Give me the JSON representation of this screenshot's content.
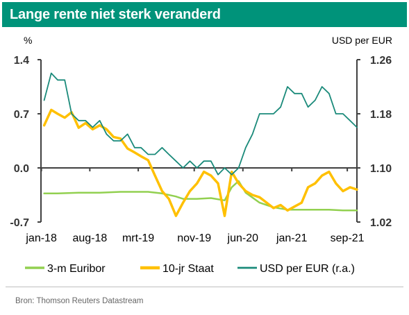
{
  "title": "Lange rente niet sterk veranderd",
  "source": "Bron: Thomson Reuters Datastream",
  "colors": {
    "title_bg": "#00937a",
    "euribor": "#92d050",
    "staat": "#ffc000",
    "usd": "#1a8a7a",
    "axis": "#404040",
    "gridline": "#d9d9d9"
  },
  "chart_data": {
    "type": "line",
    "title": "Lange rente niet sterk veranderd",
    "left_axis": {
      "label": "%",
      "ticks": [
        "1.4",
        "0.7",
        "0.0",
        "-0.7"
      ],
      "ylim": [
        -0.7,
        1.4
      ]
    },
    "right_axis": {
      "label": "USD per EUR",
      "ticks": [
        "1.26",
        "1.18",
        "1.10",
        "1.02"
      ],
      "ylim": [
        1.02,
        1.26
      ]
    },
    "x_ticks": [
      "jan-18",
      "aug-18",
      "mrt-19",
      "nov-19",
      "jun-20",
      "jan-21",
      "sep-21"
    ],
    "legend_position": "bottom",
    "grid": false,
    "series": [
      {
        "name": "3-m Euribor",
        "axis": "left",
        "x": [
          "2018-01",
          "2018-03",
          "2018-06",
          "2018-09",
          "2018-12",
          "2019-02",
          "2019-03",
          "2019-04",
          "2019-06",
          "2019-08",
          "2019-09",
          "2019-11",
          "2020-01",
          "2020-03",
          "2020-04",
          "2020-05",
          "2020-06",
          "2020-08",
          "2020-10",
          "2020-12",
          "2021-02",
          "2021-04",
          "2021-06",
          "2021-08",
          "2021-09",
          "2021-10"
        ],
        "values": [
          -0.33,
          -0.33,
          -0.32,
          -0.32,
          -0.31,
          -0.31,
          -0.31,
          -0.31,
          -0.33,
          -0.37,
          -0.4,
          -0.4,
          -0.39,
          -0.42,
          -0.25,
          -0.17,
          -0.32,
          -0.45,
          -0.51,
          -0.54,
          -0.54,
          -0.54,
          -0.54,
          -0.55,
          -0.55,
          -0.55
        ]
      },
      {
        "name": "10-jr Staat",
        "axis": "left",
        "x": [
          "2018-01",
          "2018-02",
          "2018-03",
          "2018-04",
          "2018-05",
          "2018-06",
          "2018-07",
          "2018-08",
          "2018-09",
          "2018-10",
          "2018-11",
          "2018-12",
          "2019-01",
          "2019-02",
          "2019-03",
          "2019-04",
          "2019-05",
          "2019-06",
          "2019-07",
          "2019-08",
          "2019-09",
          "2019-10",
          "2019-11",
          "2019-12",
          "2020-01",
          "2020-02",
          "2020-03",
          "2020-04",
          "2020-05",
          "2020-06",
          "2020-07",
          "2020-08",
          "2020-09",
          "2020-10",
          "2020-11",
          "2020-12",
          "2021-01",
          "2021-02",
          "2021-03",
          "2021-04",
          "2021-05",
          "2021-06",
          "2021-07",
          "2021-08",
          "2021-09",
          "2021-10"
        ],
        "values": [
          0.55,
          0.75,
          0.7,
          0.65,
          0.72,
          0.52,
          0.58,
          0.5,
          0.55,
          0.5,
          0.4,
          0.38,
          0.25,
          0.2,
          0.15,
          0.1,
          -0.1,
          -0.3,
          -0.4,
          -0.62,
          -0.45,
          -0.3,
          -0.2,
          -0.05,
          -0.1,
          -0.2,
          -0.62,
          -0.05,
          -0.2,
          -0.3,
          -0.35,
          -0.38,
          -0.45,
          -0.52,
          -0.48,
          -0.55,
          -0.5,
          -0.45,
          -0.25,
          -0.2,
          -0.1,
          -0.05,
          -0.2,
          -0.3,
          -0.25,
          -0.28
        ]
      },
      {
        "name": "USD per EUR (r.a.)",
        "axis": "right",
        "x": [
          "2018-01",
          "2018-02",
          "2018-03",
          "2018-04",
          "2018-05",
          "2018-06",
          "2018-07",
          "2018-08",
          "2018-09",
          "2018-10",
          "2018-11",
          "2018-12",
          "2019-01",
          "2019-02",
          "2019-03",
          "2019-04",
          "2019-05",
          "2019-06",
          "2019-07",
          "2019-08",
          "2019-09",
          "2019-10",
          "2019-11",
          "2019-12",
          "2020-01",
          "2020-02",
          "2020-03",
          "2020-04",
          "2020-05",
          "2020-06",
          "2020-07",
          "2020-08",
          "2020-09",
          "2020-10",
          "2020-11",
          "2020-12",
          "2021-01",
          "2021-02",
          "2021-03",
          "2021-04",
          "2021-05",
          "2021-06",
          "2021-07",
          "2021-08",
          "2021-09",
          "2021-10"
        ],
        "values": [
          1.2,
          1.24,
          1.23,
          1.23,
          1.18,
          1.17,
          1.17,
          1.16,
          1.17,
          1.15,
          1.14,
          1.14,
          1.15,
          1.13,
          1.13,
          1.12,
          1.12,
          1.13,
          1.12,
          1.11,
          1.1,
          1.11,
          1.1,
          1.11,
          1.11,
          1.09,
          1.1,
          1.09,
          1.1,
          1.13,
          1.15,
          1.18,
          1.18,
          1.18,
          1.19,
          1.22,
          1.21,
          1.21,
          1.19,
          1.2,
          1.22,
          1.21,
          1.18,
          1.18,
          1.17,
          1.16
        ]
      }
    ]
  }
}
